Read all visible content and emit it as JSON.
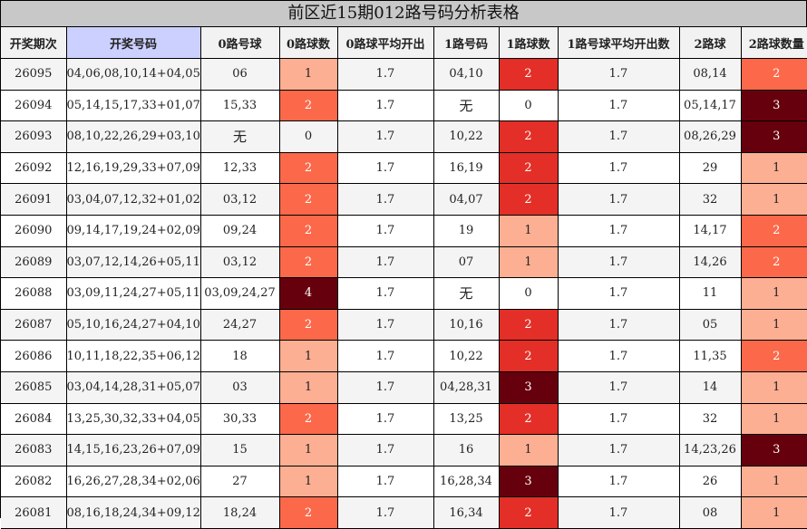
{
  "title": "前区近15期012路号码分析表格",
  "headers": [
    "开奖期次",
    "开奖号码",
    "0路号球",
    "0路球数",
    "0路球平均开出",
    "1路号码",
    "1路球数",
    "1路号球平均开出数",
    "2路球",
    "2路球数量"
  ],
  "count_colors": {
    "0": "#fff5f0",
    "1": "#fcaf93",
    "2": "#fb694a",
    "3": "#67000d",
    "4": "#67000d"
  },
  "count_text_colors": {
    "0": "#222222",
    "1": "#222222",
    "2": "#ffffff",
    "3": "#ffffff",
    "4": "#ffffff"
  },
  "count_colors_col2": {
    "0": "#fff5f0",
    "1": "#fcaf93",
    "2": "#e32f27",
    "3": "#67000d"
  },
  "rows": [
    {
      "period": "26095",
      "numbers": "04,06,08,10,14+04,05",
      "r0": "06",
      "c0": "1",
      "a0": "1.7",
      "r1": "04,10",
      "c1": "2",
      "a1": "1.7",
      "r2": "08,14",
      "c2": "2"
    },
    {
      "period": "26094",
      "numbers": "05,14,15,17,33+01,07",
      "r0": "15,33",
      "c0": "2",
      "a0": "1.7",
      "r1": "无",
      "c1": "0",
      "a1": "1.7",
      "r2": "05,14,17",
      "c2": "3"
    },
    {
      "period": "26093",
      "numbers": "08,10,22,26,29+03,10",
      "r0": "无",
      "c0": "0",
      "a0": "1.7",
      "r1": "10,22",
      "c1": "2",
      "a1": "1.7",
      "r2": "08,26,29",
      "c2": "3"
    },
    {
      "period": "26092",
      "numbers": "12,16,19,29,33+07,09",
      "r0": "12,33",
      "c0": "2",
      "a0": "1.7",
      "r1": "16,19",
      "c1": "2",
      "a1": "1.7",
      "r2": "29",
      "c2": "1"
    },
    {
      "period": "26091",
      "numbers": "03,04,07,12,32+01,02",
      "r0": "03,12",
      "c0": "2",
      "a0": "1.7",
      "r1": "04,07",
      "c1": "2",
      "a1": "1.7",
      "r2": "32",
      "c2": "1"
    },
    {
      "period": "26090",
      "numbers": "09,14,17,19,24+02,09",
      "r0": "09,24",
      "c0": "2",
      "a0": "1.7",
      "r1": "19",
      "c1": "1",
      "a1": "1.7",
      "r2": "14,17",
      "c2": "2"
    },
    {
      "period": "26089",
      "numbers": "03,07,12,14,26+05,11",
      "r0": "03,12",
      "c0": "2",
      "a0": "1.7",
      "r1": "07",
      "c1": "1",
      "a1": "1.7",
      "r2": "14,26",
      "c2": "2"
    },
    {
      "period": "26088",
      "numbers": "03,09,11,24,27+05,11",
      "r0": "03,09,24,27",
      "c0": "4",
      "a0": "1.7",
      "r1": "无",
      "c1": "0",
      "a1": "1.7",
      "r2": "11",
      "c2": "1"
    },
    {
      "period": "26087",
      "numbers": "05,10,16,24,27+04,10",
      "r0": "24,27",
      "c0": "2",
      "a0": "1.7",
      "r1": "10,16",
      "c1": "2",
      "a1": "1.7",
      "r2": "05",
      "c2": "1"
    },
    {
      "period": "26086",
      "numbers": "10,11,18,22,35+06,12",
      "r0": "18",
      "c0": "1",
      "a0": "1.7",
      "r1": "10,22",
      "c1": "2",
      "a1": "1.7",
      "r2": "11,35",
      "c2": "2"
    },
    {
      "period": "26085",
      "numbers": "03,04,14,28,31+05,07",
      "r0": "03",
      "c0": "1",
      "a0": "1.7",
      "r1": "04,28,31",
      "c1": "3",
      "a1": "1.7",
      "r2": "14",
      "c2": "1"
    },
    {
      "period": "26084",
      "numbers": "13,25,30,32,33+04,05",
      "r0": "30,33",
      "c0": "2",
      "a0": "1.7",
      "r1": "13,25",
      "c1": "2",
      "a1": "1.7",
      "r2": "32",
      "c2": "1"
    },
    {
      "period": "26083",
      "numbers": "14,15,16,23,26+07,09",
      "r0": "15",
      "c0": "1",
      "a0": "1.7",
      "r1": "16",
      "c1": "1",
      "a1": "1.7",
      "r2": "14,23,26",
      "c2": "3"
    },
    {
      "period": "26082",
      "numbers": "16,26,27,28,34+02,06",
      "r0": "27",
      "c0": "1",
      "a0": "1.7",
      "r1": "16,28,34",
      "c1": "3",
      "a1": "1.7",
      "r2": "26",
      "c2": "1"
    },
    {
      "period": "26081",
      "numbers": "08,16,18,24,34+09,12",
      "r0": "18,24",
      "c0": "2",
      "a0": "1.7",
      "r1": "16,34",
      "c1": "2",
      "a1": "1.7",
      "r2": "08",
      "c2": "1"
    }
  ]
}
